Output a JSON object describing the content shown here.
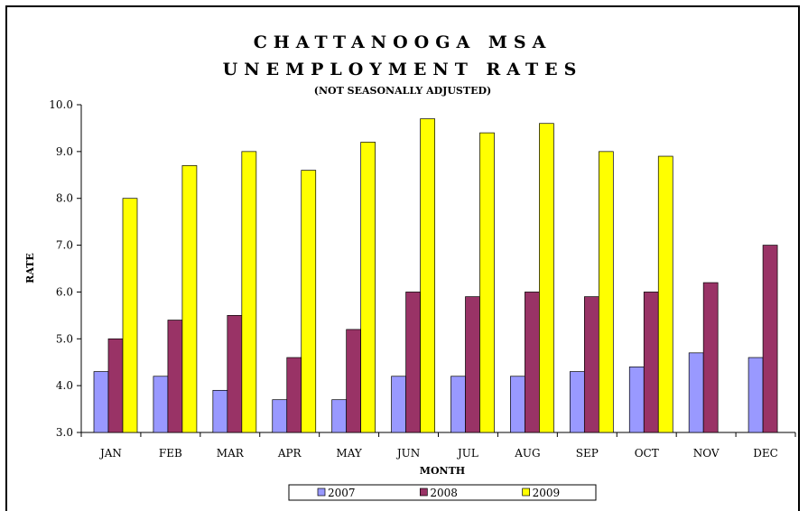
{
  "chart_data": {
    "type": "bar",
    "title_line1": "CHATTANOOGA MSA",
    "title_line2": "UNEMPLOYMENT RATES",
    "subtitle": "(NOT SEASONALLY ADJUSTED)",
    "xlabel": "MONTH",
    "ylabel": "RATE",
    "ylim": [
      3.0,
      10.0
    ],
    "yticks": [
      "3.0",
      "4.0",
      "5.0",
      "6.0",
      "7.0",
      "8.0",
      "9.0",
      "10.0"
    ],
    "categories": [
      "JAN",
      "FEB",
      "MAR",
      "APR",
      "MAY",
      "JUN",
      "JUL",
      "AUG",
      "SEP",
      "OCT",
      "NOV",
      "DEC"
    ],
    "series": [
      {
        "name": "2007",
        "color": "#9999ff",
        "values": [
          4.3,
          4.2,
          3.9,
          3.7,
          3.7,
          4.2,
          4.2,
          4.2,
          4.3,
          4.4,
          4.7,
          4.6
        ]
      },
      {
        "name": "2008",
        "color": "#993366",
        "values": [
          5.0,
          5.4,
          5.5,
          4.6,
          5.2,
          6.0,
          5.9,
          6.0,
          5.9,
          6.0,
          6.2,
          7.0
        ]
      },
      {
        "name": "2009",
        "color": "#ffff00",
        "values": [
          8.0,
          8.7,
          9.0,
          8.6,
          9.2,
          9.7,
          9.4,
          9.6,
          9.0,
          8.9,
          null,
          null
        ]
      }
    ],
    "grid": false,
    "legend_position": "bottom"
  }
}
